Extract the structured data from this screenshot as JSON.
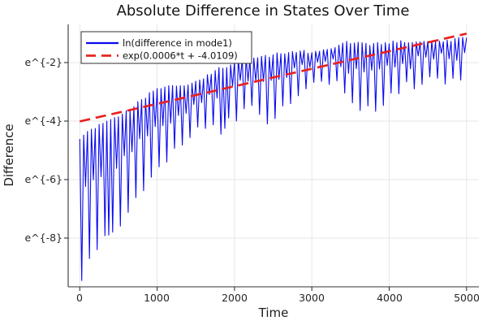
{
  "chart_data": {
    "type": "line",
    "title": "Absolute Difference in States Over Time",
    "xlabel": "Time",
    "ylabel": "Difference",
    "x_ticks": [
      0,
      1000,
      2000,
      3000,
      4000,
      5000
    ],
    "x_tick_labels": [
      "0",
      "1000",
      "2000",
      "3000",
      "4000",
      "5000"
    ],
    "y_ticks_ln": [
      -2,
      -4,
      -6,
      -8
    ],
    "y_tick_labels": [
      "e^{-2}",
      "e^{-4}",
      "e^{-6}",
      "e^{-8}"
    ],
    "xlim": [
      -150,
      5160
    ],
    "ylim_ln": [
      -9.64,
      -0.67
    ],
    "grid": true,
    "legend_position": "top-left",
    "background_color": "#ffffff",
    "grid_color": "#e4e4e4",
    "axis_color": "#333333",
    "series": [
      {
        "name": "ln(difference in mode1)",
        "color": "#0b0bee",
        "style": "solid",
        "kind": "oscillatory-log-difference",
        "spike_half_period_t": 25,
        "envelope_t": [
          0,
          100,
          200,
          300,
          400,
          500,
          600,
          700,
          800,
          900,
          1000,
          1100,
          1200,
          1300,
          1400,
          1500,
          1600,
          1700,
          1800,
          1900,
          2000,
          2100,
          2200,
          2300,
          2400,
          2500,
          2600,
          2700,
          2800,
          2900,
          3000,
          3100,
          3200,
          3300,
          3400,
          3500,
          3600,
          3700,
          3800,
          3900,
          4000,
          4100,
          4200,
          4300,
          4400,
          4500,
          4600,
          4700,
          4800,
          4900,
          5000
        ],
        "envelope_upper_ln": [
          -4.55,
          -4.42,
          -4.28,
          -4.12,
          -3.95,
          -3.8,
          -3.62,
          -3.45,
          -3.28,
          -3.1,
          -2.97,
          -2.9,
          -2.83,
          -2.76,
          -2.68,
          -2.58,
          -2.5,
          -2.38,
          -2.28,
          -2.2,
          -1.95,
          -1.85,
          -1.82,
          -1.8,
          -1.78,
          -1.75,
          -1.72,
          -1.7,
          -1.65,
          -1.62,
          -1.6,
          -1.55,
          -1.5,
          -1.45,
          -1.4,
          -1.38,
          -1.36,
          -1.34,
          -1.32,
          -1.3,
          -1.3,
          -1.32,
          -1.35,
          -1.33,
          -1.3,
          -1.28,
          -1.25,
          -1.22,
          -1.2,
          -1.18,
          -1.15
        ],
        "envelope_lower_ln": [
          -7.6,
          -8.5,
          -8.2,
          -8.0,
          -7.75,
          -7.5,
          -7.15,
          -6.8,
          -6.45,
          -6.1,
          -5.75,
          -5.4,
          -5.15,
          -4.95,
          -4.6,
          -4.35,
          -4.2,
          -4.1,
          -4.0,
          -4.0,
          -3.85,
          -3.75,
          -3.5,
          -3.7,
          -4.0,
          -3.9,
          -3.5,
          -3.3,
          -3.1,
          -2.9,
          -2.85,
          -2.7,
          -2.6,
          -2.75,
          -3.0,
          -3.25,
          -3.45,
          -3.6,
          -3.65,
          -3.55,
          -3.3,
          -3.0,
          -2.8,
          -2.9,
          -2.7,
          -2.5,
          -2.4,
          -2.6,
          -2.45,
          -2.55,
          -2.4
        ],
        "deep_spikes": [
          [
            25,
            -9.45
          ],
          [
            125,
            -8.7
          ],
          [
            225,
            -8.4
          ],
          [
            375,
            -7.9
          ],
          [
            1825,
            -4.45
          ],
          [
            1875,
            -4.25
          ],
          [
            2425,
            -4.1
          ]
        ]
      },
      {
        "name": "exp(0.0006*t + -4.0109)",
        "color": "#e8231e",
        "style": "dashed",
        "slope": 0.0006,
        "intercept": -4.0109,
        "x_range": [
          0,
          5000
        ]
      }
    ]
  },
  "legend": {
    "entries": [
      "ln(difference in mode1)",
      "exp(0.0006*t + -4.0109)"
    ]
  }
}
